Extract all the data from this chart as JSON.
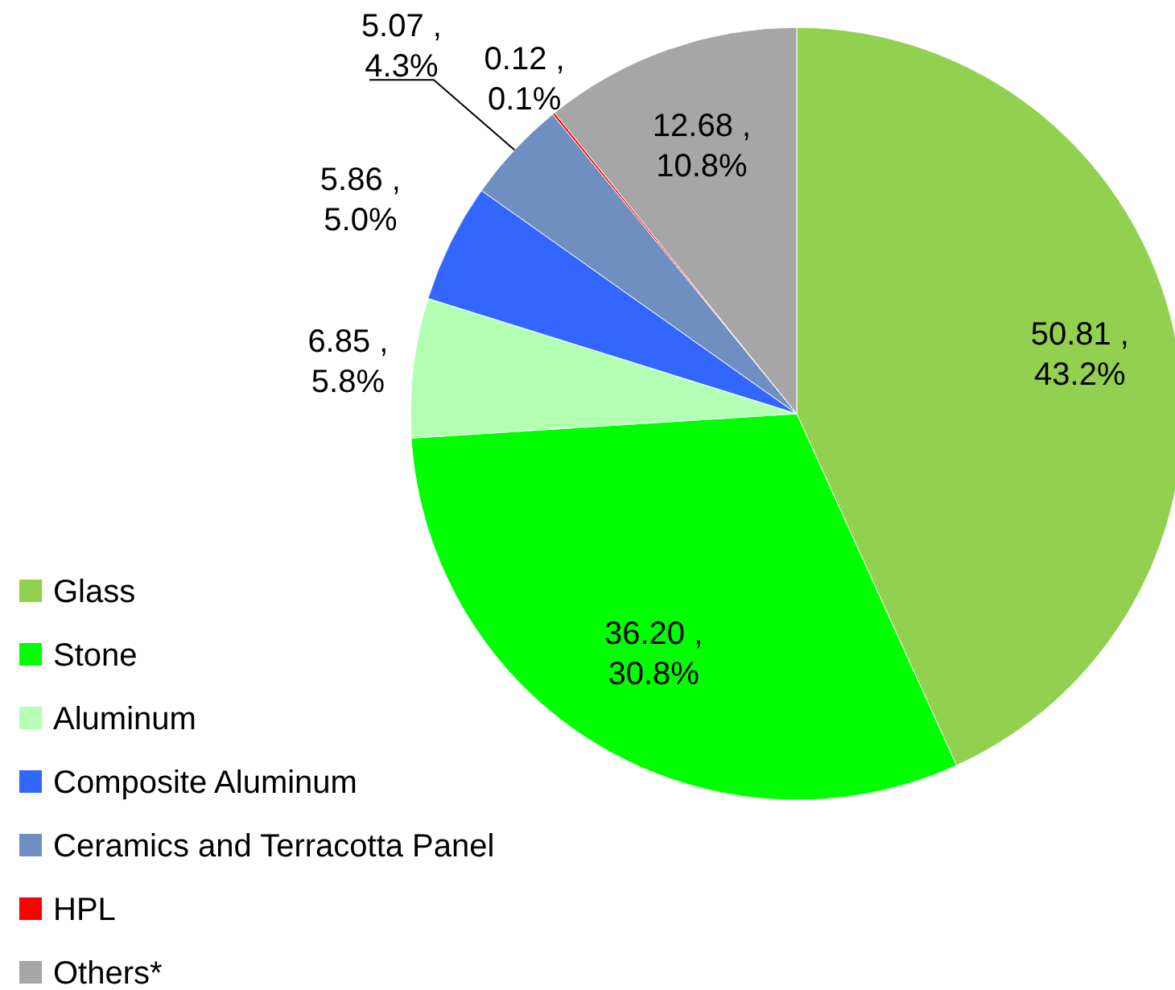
{
  "chart_data": {
    "type": "pie",
    "categories": [
      "Glass",
      "Stone",
      "Aluminum",
      "Composite Aluminum",
      "Ceramics and Terracotta Panel",
      "HPL",
      "Others*"
    ],
    "values": [
      50.81,
      36.2,
      6.85,
      5.86,
      5.07,
      0.12,
      12.68
    ],
    "colors": [
      "#92d050",
      "#00ff00",
      "#b3ffb3",
      "#3366ff",
      "#6e8fc0",
      "#ff0000",
      "#a6a6a6"
    ],
    "value_labels": [
      "50.81 ,\n43.2%",
      "36.20 ,\n30.8%",
      "6.85 ,\n5.8%",
      "5.86 ,\n5.0%",
      "5.07 ,\n4.3%",
      "0.12 ,\n0.1%",
      "12.68 ,\n10.8%"
    ],
    "legend": "bottom left"
  }
}
